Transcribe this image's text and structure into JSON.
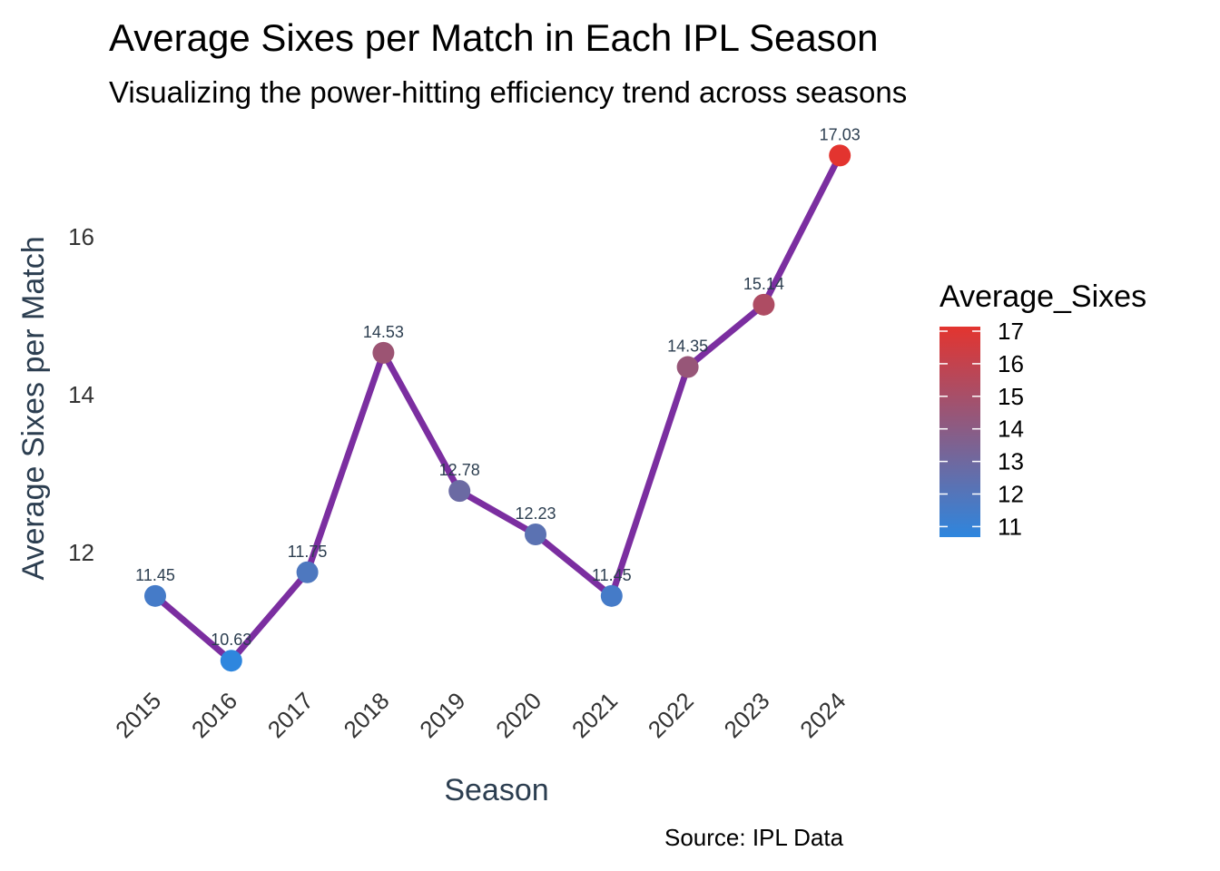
{
  "chart_data": {
    "type": "line",
    "title": "Average Sixes per Match in Each IPL Season",
    "subtitle": "Visualizing the power-hitting efficiency trend across seasons",
    "xlabel": "Season",
    "ylabel": "Average Sixes per Match",
    "caption": "Source: IPL Data",
    "categories": [
      "2015",
      "2016",
      "2017",
      "2018",
      "2019",
      "2020",
      "2021",
      "2022",
      "2023",
      "2024"
    ],
    "values": [
      11.45,
      10.63,
      11.75,
      14.53,
      12.78,
      12.23,
      11.45,
      14.35,
      15.14,
      17.03
    ],
    "labels": [
      "11.45",
      "10.63",
      "11.75",
      "14.53",
      "12.78",
      "12.23",
      "11.45",
      "14.35",
      "15.14",
      "17.03"
    ],
    "yticks": [
      12,
      14,
      16
    ],
    "ylim": [
      10.3,
      17.3
    ],
    "line_color": "#7b2ea0",
    "grid": false,
    "legend": {
      "title": "Average_Sixes",
      "ticks": [
        17,
        16,
        15,
        14,
        13,
        12,
        11
      ],
      "low_color": "#2e86de",
      "high_color": "#e3342f",
      "range": [
        10.63,
        17.03
      ],
      "position": "right"
    }
  }
}
